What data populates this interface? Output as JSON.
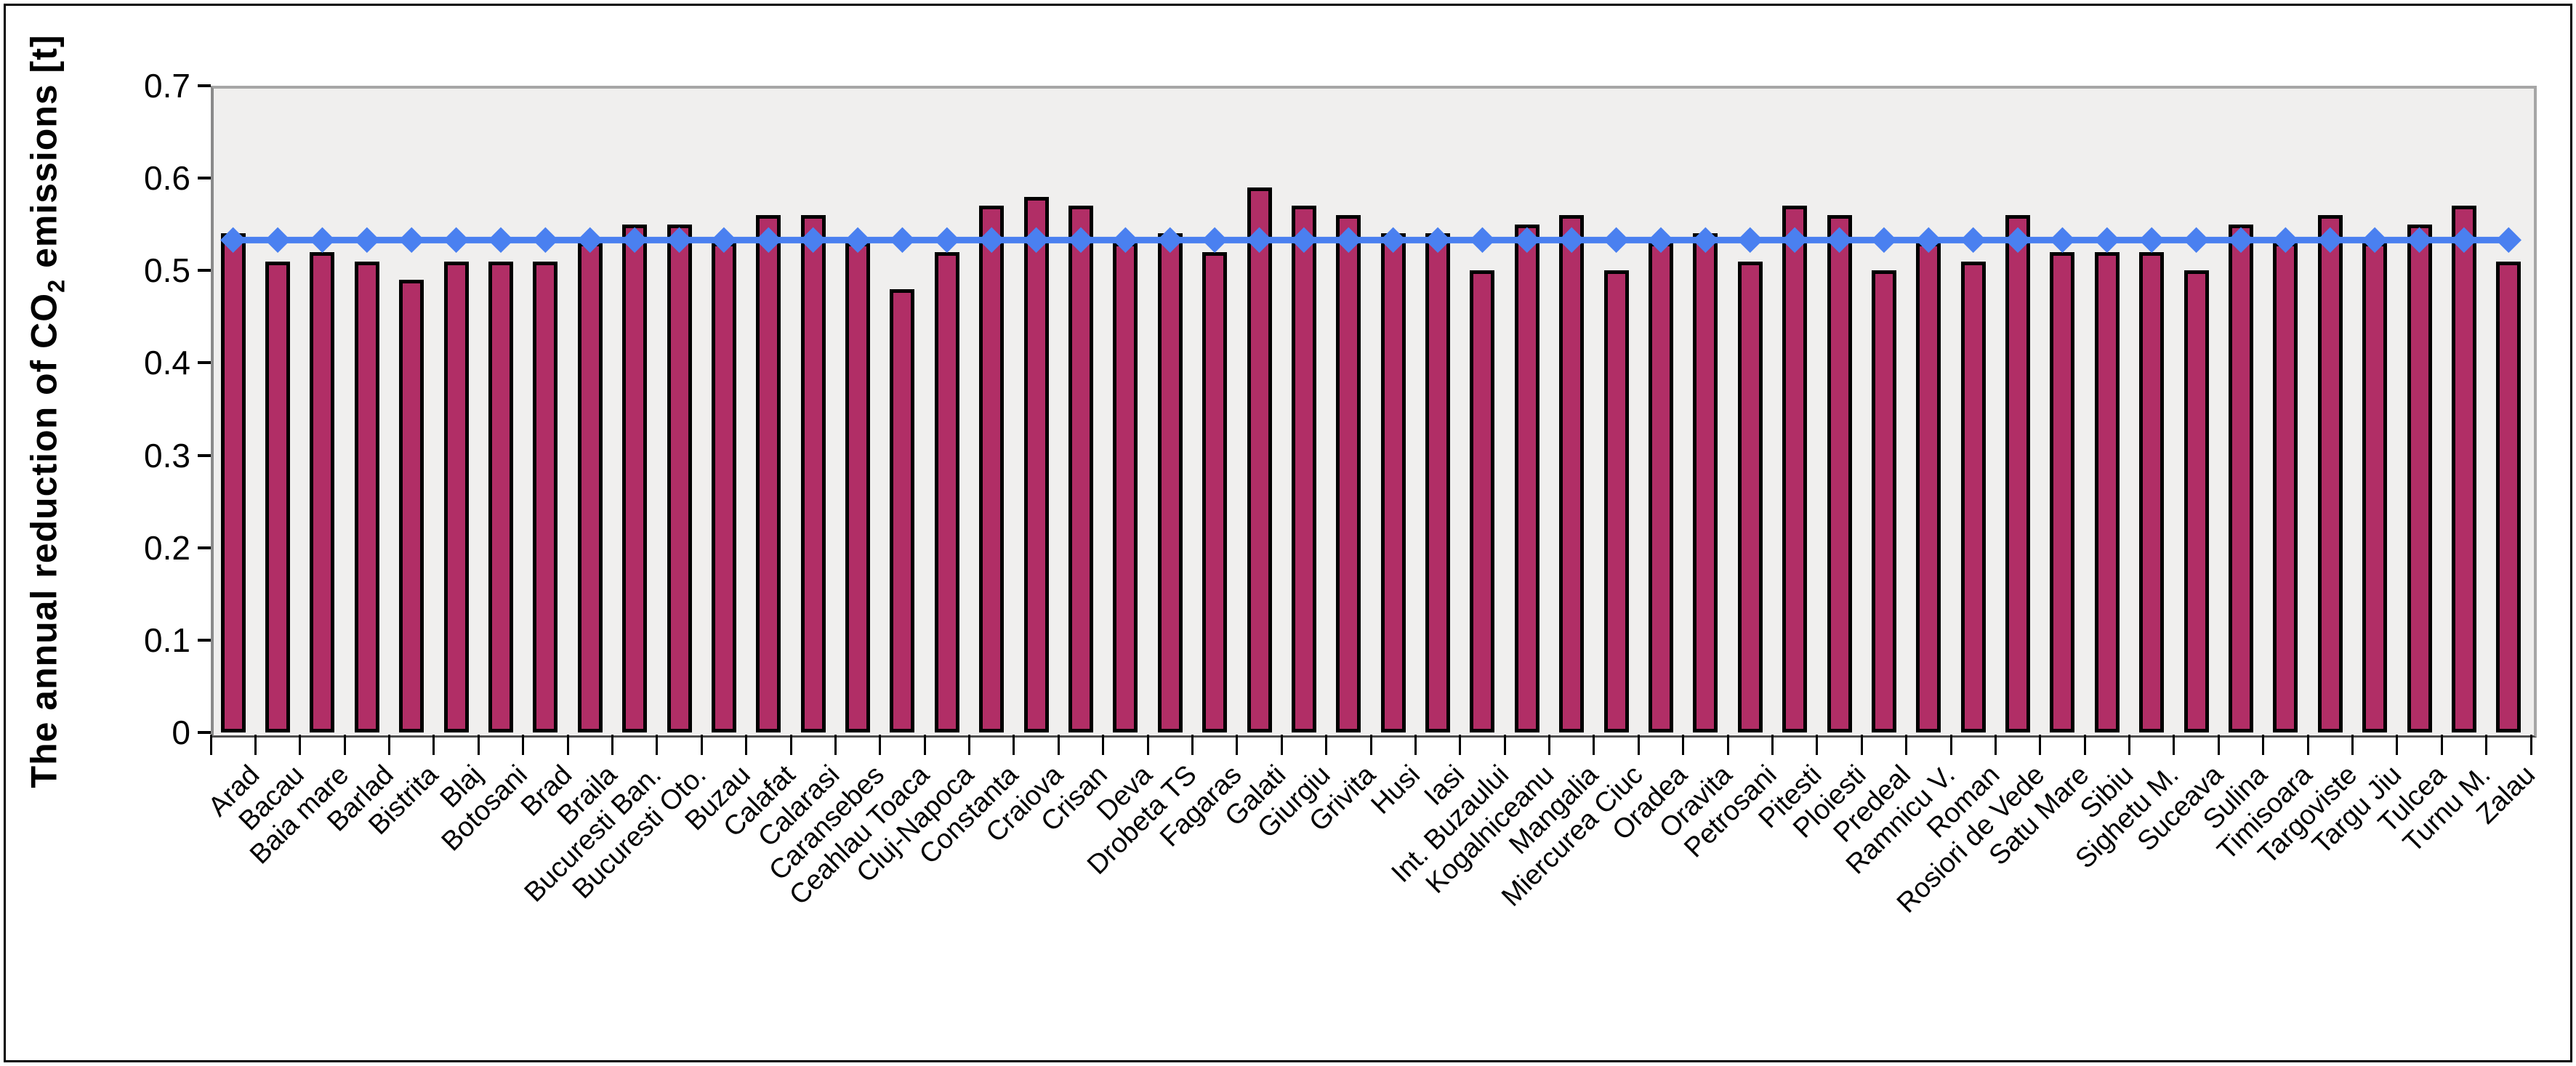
{
  "chart_data": {
    "type": "bar",
    "title": "",
    "ylabel_prefix": "The annual reduction of CO",
    "ylabel_sub": "2",
    "ylabel_suffix": " emissions [t]",
    "xlabel": "",
    "ylim": [
      0,
      0.7
    ],
    "y_tick_labels": [
      "0.7",
      "0.6",
      "0.5",
      "0.4",
      "0.3",
      "0.2",
      "0.1",
      "0"
    ],
    "grid": false,
    "legend": "none",
    "categories": [
      "Arad",
      "Bacau",
      "Baia mare",
      "Barlad",
      "Bistrita",
      "Blaj",
      "Botosani",
      "Brad",
      "Braila",
      "Bucuresti Ban.",
      "Bucuresti Oto.",
      "Buzau",
      "Calafat",
      "Calarasi",
      "Caransebes",
      "Ceahlau Toaca",
      "Cluj-Napoca",
      "Constanta",
      "Craiova",
      "Crisan",
      "Deva",
      "Drobeta TS",
      "Fagaras",
      "Galati",
      "Giurgiu",
      "Grivita",
      "Husi",
      "Iasi",
      "Int. Buzaului",
      "Kogalniceanu",
      "Mangalia",
      "Miercurea Ciuc",
      "Oradea",
      "Oravita",
      "Petrosani",
      "Pitesti",
      "Ploiesti",
      "Predeal",
      "Ramnicu V.",
      "Roman",
      "Rosiori de Vede",
      "Satu Mare",
      "Sibiu",
      "Sighetu M.",
      "Suceava",
      "Sulina",
      "Timisoara",
      "Targoviste",
      "Targu Jiu",
      "Tulcea",
      "Turnu M.",
      "Zalau"
    ],
    "values": [
      0.54,
      0.51,
      0.52,
      0.51,
      0.49,
      0.51,
      0.51,
      0.51,
      0.53,
      0.55,
      0.55,
      0.53,
      0.56,
      0.56,
      0.53,
      0.48,
      0.52,
      0.57,
      0.58,
      0.57,
      0.53,
      0.54,
      0.52,
      0.59,
      0.57,
      0.56,
      0.54,
      0.54,
      0.5,
      0.55,
      0.56,
      0.5,
      0.53,
      0.54,
      0.51,
      0.57,
      0.56,
      0.5,
      0.53,
      0.51,
      0.56,
      0.52,
      0.52,
      0.52,
      0.5,
      0.55,
      0.53,
      0.56,
      0.53,
      0.55,
      0.57,
      0.51
    ],
    "line_value": 0.533,
    "colors": {
      "bar_fill": "#b12e66",
      "bar_border": "#000000",
      "line": "#4a80f0",
      "plot_bg": "#f0efee",
      "axis_border": "#a6a6a6",
      "tick": "#000000"
    }
  }
}
